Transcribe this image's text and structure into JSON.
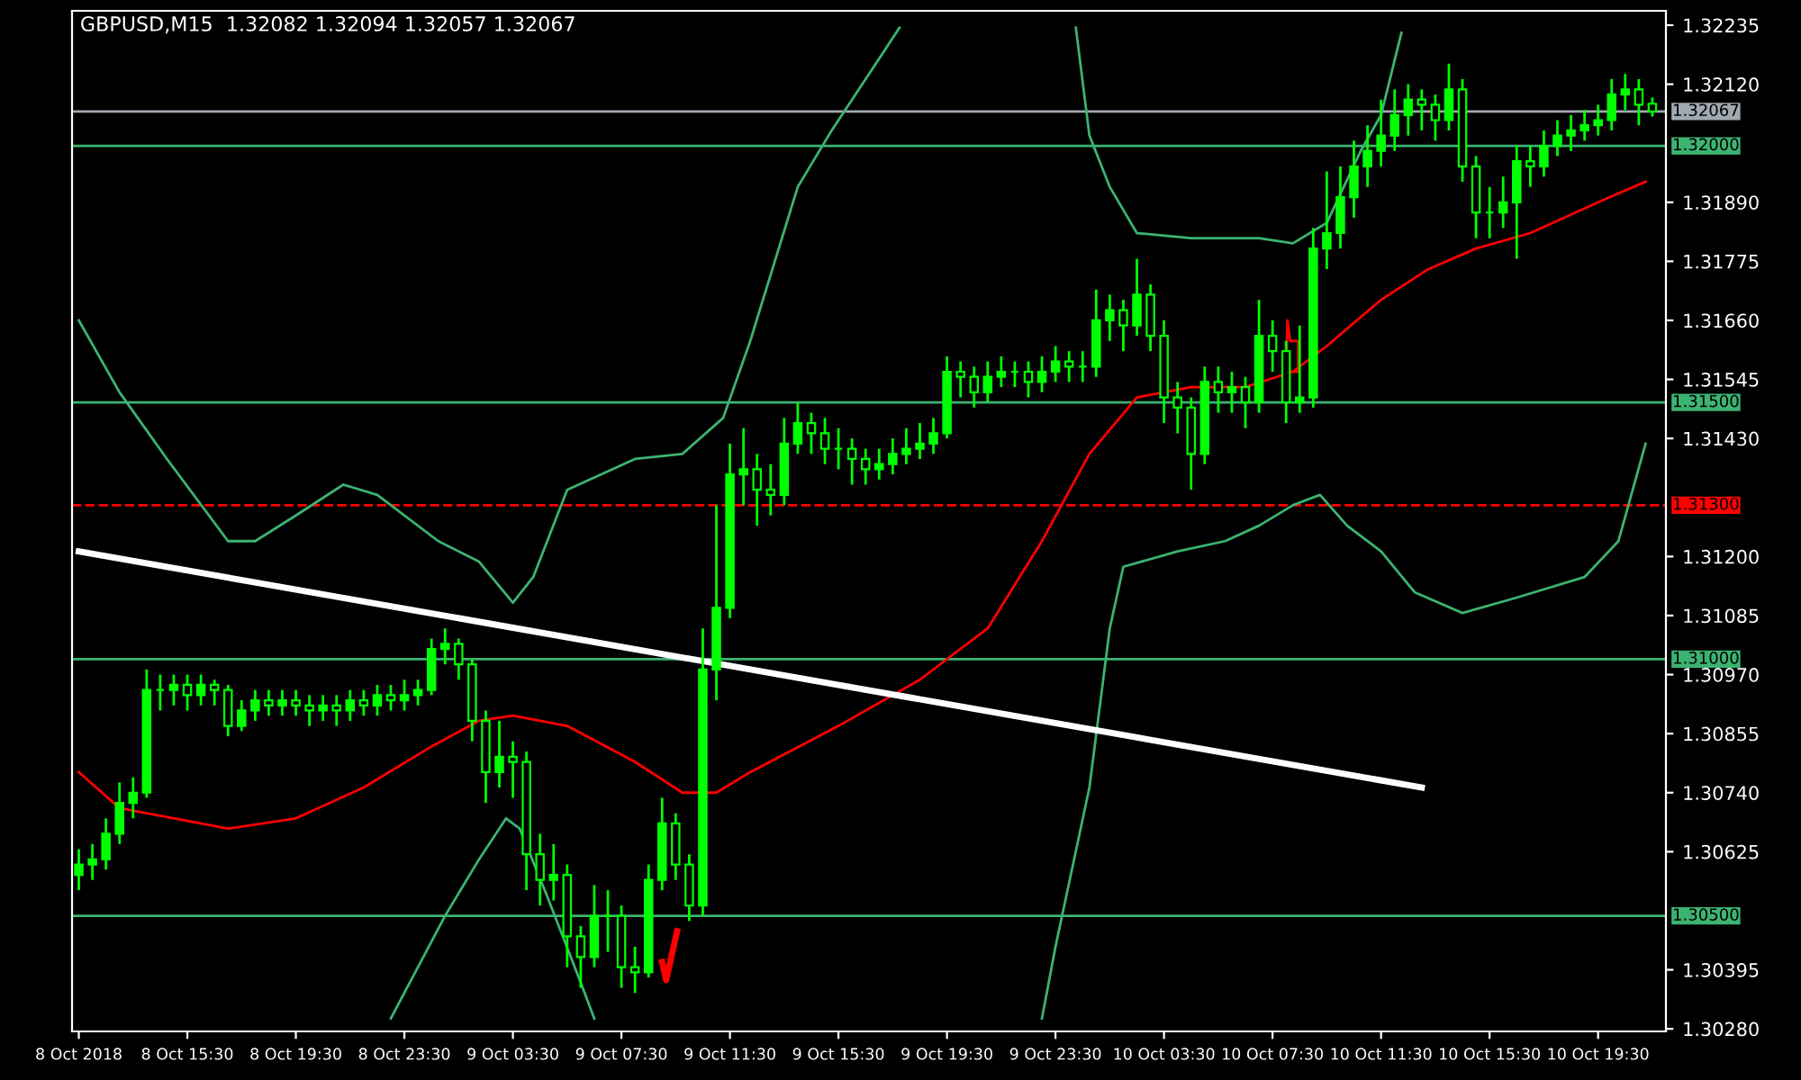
{
  "chart_data": {
    "type": "candlestick",
    "title": "GBPUSD,M15  1.32082 1.32094 1.32057 1.32067",
    "color": "#00ff00",
    "x": [
      "2018-10-08T11:30",
      "2018-10-08T12:00",
      "2018-10-08T12:30",
      "2018-10-08T13:00",
      "2018-10-08T13:30",
      "2018-10-08T14:00",
      "2018-10-08T14:30",
      "2018-10-08T15:00",
      "2018-10-08T15:30",
      "2018-10-08T16:00",
      "2018-10-08T16:30",
      "2018-10-08T17:00",
      "2018-10-08T17:30",
      "2018-10-08T18:00",
      "2018-10-08T18:30",
      "2018-10-08T19:00",
      "2018-10-08T19:30",
      "2018-10-08T20:00",
      "2018-10-08T20:30",
      "2018-10-08T21:00",
      "2018-10-08T21:30",
      "2018-10-08T22:00",
      "2018-10-08T22:30",
      "2018-10-08T23:00",
      "2018-10-08T23:30",
      "2018-10-09T00:00",
      "2018-10-09T00:30",
      "2018-10-09T01:00",
      "2018-10-09T01:30",
      "2018-10-09T02:00",
      "2018-10-09T02:30",
      "2018-10-09T03:00",
      "2018-10-09T03:30",
      "2018-10-09T04:00",
      "2018-10-09T04:30",
      "2018-10-09T05:00",
      "2018-10-09T05:30",
      "2018-10-09T06:00",
      "2018-10-09T06:30",
      "2018-10-09T07:00",
      "2018-10-09T07:30",
      "2018-10-09T08:00",
      "2018-10-09T08:30",
      "2018-10-09T09:00",
      "2018-10-09T09:30",
      "2018-10-09T10:00",
      "2018-10-09T10:30",
      "2018-10-09T11:00",
      "2018-10-09T11:30",
      "2018-10-09T12:00",
      "2018-10-09T12:30",
      "2018-10-09T13:00",
      "2018-10-09T13:30",
      "2018-10-09T14:00",
      "2018-10-09T14:30",
      "2018-10-09T15:00",
      "2018-10-09T15:30",
      "2018-10-09T16:00",
      "2018-10-09T16:30",
      "2018-10-09T17:00",
      "2018-10-09T17:30",
      "2018-10-09T18:00",
      "2018-10-09T18:30",
      "2018-10-09T19:00",
      "2018-10-09T19:30",
      "2018-10-09T20:00",
      "2018-10-09T20:30",
      "2018-10-09T21:00",
      "2018-10-09T21:30",
      "2018-10-09T22:00",
      "2018-10-09T22:30",
      "2018-10-09T23:00",
      "2018-10-09T23:30",
      "2018-10-10T00:00",
      "2018-10-10T00:30",
      "2018-10-10T01:00",
      "2018-10-10T01:30",
      "2018-10-10T02:00",
      "2018-10-10T02:30",
      "2018-10-10T03:00",
      "2018-10-10T03:30",
      "2018-10-10T04:00",
      "2018-10-10T04:30",
      "2018-10-10T05:00",
      "2018-10-10T05:30",
      "2018-10-10T06:00",
      "2018-10-10T06:30",
      "2018-10-10T07:00",
      "2018-10-10T07:30",
      "2018-10-10T08:00",
      "2018-10-10T08:30",
      "2018-10-10T09:00",
      "2018-10-10T09:30",
      "2018-10-10T10:00",
      "2018-10-10T10:30",
      "2018-10-10T11:00",
      "2018-10-10T11:30",
      "2018-10-10T12:00",
      "2018-10-10T12:30",
      "2018-10-10T13:00",
      "2018-10-10T13:30",
      "2018-10-10T14:00",
      "2018-10-10T14:30",
      "2018-10-10T15:00",
      "2018-10-10T15:30",
      "2018-10-10T16:00",
      "2018-10-10T16:30",
      "2018-10-10T17:00",
      "2018-10-10T17:30",
      "2018-10-10T18:00",
      "2018-10-10T18:30",
      "2018-10-10T19:00",
      "2018-10-10T19:30",
      "2018-10-10T20:00",
      "2018-10-10T20:30",
      "2018-10-10T21:00",
      "2018-10-10T21:30"
    ],
    "ohlc": [
      [
        1.3058,
        1.3063,
        1.3055,
        1.306
      ],
      [
        1.306,
        1.3064,
        1.3057,
        1.3061
      ],
      [
        1.3061,
        1.3069,
        1.3059,
        1.3066
      ],
      [
        1.3066,
        1.3076,
        1.3064,
        1.3072
      ],
      [
        1.3072,
        1.3077,
        1.3069,
        1.3074
      ],
      [
        1.3074,
        1.3098,
        1.3073,
        1.3094
      ],
      [
        1.3094,
        1.3097,
        1.309,
        1.3094
      ],
      [
        1.3094,
        1.3097,
        1.3091,
        1.3095
      ],
      [
        1.3095,
        1.3097,
        1.309,
        1.3093
      ],
      [
        1.3093,
        1.3097,
        1.3091,
        1.3095
      ],
      [
        1.3095,
        1.3096,
        1.3091,
        1.3094
      ],
      [
        1.3094,
        1.3095,
        1.3085,
        1.3087
      ],
      [
        1.3087,
        1.3092,
        1.3086,
        1.309
      ],
      [
        1.309,
        1.3094,
        1.3088,
        1.3092
      ],
      [
        1.3092,
        1.3094,
        1.3089,
        1.3091
      ],
      [
        1.3091,
        1.3094,
        1.3089,
        1.3092
      ],
      [
        1.3092,
        1.3094,
        1.3089,
        1.3091
      ],
      [
        1.3091,
        1.3093,
        1.3087,
        1.309
      ],
      [
        1.309,
        1.3093,
        1.3088,
        1.3091
      ],
      [
        1.3091,
        1.3093,
        1.3087,
        1.309
      ],
      [
        1.309,
        1.3094,
        1.3088,
        1.3092
      ],
      [
        1.3092,
        1.3094,
        1.3089,
        1.3091
      ],
      [
        1.3091,
        1.3095,
        1.3089,
        1.3093
      ],
      [
        1.3093,
        1.3095,
        1.309,
        1.3092
      ],
      [
        1.3092,
        1.3096,
        1.309,
        1.3093
      ],
      [
        1.3093,
        1.3096,
        1.3091,
        1.3094
      ],
      [
        1.3094,
        1.3104,
        1.3093,
        1.3102
      ],
      [
        1.3102,
        1.3106,
        1.3099,
        1.3103
      ],
      [
        1.3103,
        1.3104,
        1.3096,
        1.3099
      ],
      [
        1.3099,
        1.31,
        1.3084,
        1.3088
      ],
      [
        1.3088,
        1.309,
        1.3072,
        1.3078
      ],
      [
        1.3078,
        1.3088,
        1.3075,
        1.3081
      ],
      [
        1.3081,
        1.3084,
        1.3073,
        1.308
      ],
      [
        1.308,
        1.3082,
        1.3055,
        1.3062
      ],
      [
        1.3062,
        1.3066,
        1.3052,
        1.3057
      ],
      [
        1.3057,
        1.3064,
        1.3053,
        1.3058
      ],
      [
        1.3058,
        1.306,
        1.304,
        1.3046
      ],
      [
        1.3046,
        1.3048,
        1.3036,
        1.3042
      ],
      [
        1.3042,
        1.3056,
        1.304,
        1.305
      ],
      [
        1.305,
        1.3055,
        1.3043,
        1.305
      ],
      [
        1.305,
        1.3052,
        1.3036,
        1.304
      ],
      [
        1.304,
        1.3044,
        1.3035,
        1.3039
      ],
      [
        1.3039,
        1.306,
        1.3038,
        1.3057
      ],
      [
        1.3057,
        1.3073,
        1.3055,
        1.3068
      ],
      [
        1.3068,
        1.307,
        1.3057,
        1.306
      ],
      [
        1.306,
        1.3062,
        1.3049,
        1.3052
      ],
      [
        1.3052,
        1.3106,
        1.305,
        1.3098
      ],
      [
        1.3098,
        1.313,
        1.3092,
        1.311
      ],
      [
        1.311,
        1.3142,
        1.3108,
        1.3136
      ],
      [
        1.3136,
        1.3145,
        1.313,
        1.3137
      ],
      [
        1.3137,
        1.314,
        1.3126,
        1.3133
      ],
      [
        1.3133,
        1.3138,
        1.3128,
        1.3132
      ],
      [
        1.3132,
        1.3147,
        1.313,
        1.3142
      ],
      [
        1.3142,
        1.315,
        1.314,
        1.3146
      ],
      [
        1.3146,
        1.3148,
        1.314,
        1.3144
      ],
      [
        1.3144,
        1.3147,
        1.3138,
        1.3141
      ],
      [
        1.3141,
        1.3145,
        1.3137,
        1.3141
      ],
      [
        1.3141,
        1.3143,
        1.3134,
        1.3139
      ],
      [
        1.3139,
        1.3141,
        1.3134,
        1.3137
      ],
      [
        1.3137,
        1.3141,
        1.3135,
        1.3138
      ],
      [
        1.3138,
        1.3143,
        1.3136,
        1.314
      ],
      [
        1.314,
        1.3145,
        1.3138,
        1.3141
      ],
      [
        1.3141,
        1.3146,
        1.3139,
        1.3142
      ],
      [
        1.3142,
        1.3147,
        1.314,
        1.3144
      ],
      [
        1.3144,
        1.3159,
        1.3143,
        1.3156
      ],
      [
        1.3156,
        1.3158,
        1.3151,
        1.3155
      ],
      [
        1.3155,
        1.3157,
        1.3149,
        1.3152
      ],
      [
        1.3152,
        1.3158,
        1.315,
        1.3155
      ],
      [
        1.3155,
        1.3159,
        1.3153,
        1.3156
      ],
      [
        1.3156,
        1.3158,
        1.3153,
        1.3156
      ],
      [
        1.3156,
        1.3158,
        1.3151,
        1.3154
      ],
      [
        1.3154,
        1.3159,
        1.3152,
        1.3156
      ],
      [
        1.3156,
        1.3161,
        1.3154,
        1.3158
      ],
      [
        1.3158,
        1.316,
        1.3154,
        1.3157
      ],
      [
        1.3157,
        1.316,
        1.3154,
        1.3157
      ],
      [
        1.3157,
        1.3172,
        1.3155,
        1.3166
      ],
      [
        1.3166,
        1.3171,
        1.3162,
        1.3168
      ],
      [
        1.3168,
        1.317,
        1.316,
        1.3165
      ],
      [
        1.3165,
        1.3178,
        1.3163,
        1.3171
      ],
      [
        1.3171,
        1.3173,
        1.316,
        1.3163
      ],
      [
        1.3163,
        1.3166,
        1.3146,
        1.3151
      ],
      [
        1.3151,
        1.3154,
        1.3144,
        1.3149
      ],
      [
        1.3149,
        1.3151,
        1.3133,
        1.314
      ],
      [
        1.314,
        1.3157,
        1.3138,
        1.3154
      ],
      [
        1.3154,
        1.3157,
        1.3148,
        1.3152
      ],
      [
        1.3152,
        1.3156,
        1.3148,
        1.3153
      ],
      [
        1.3153,
        1.3155,
        1.3145,
        1.315
      ],
      [
        1.315,
        1.317,
        1.3148,
        1.3163
      ],
      [
        1.3163,
        1.3166,
        1.3156,
        1.316
      ],
      [
        1.316,
        1.3162,
        1.3146,
        1.315
      ],
      [
        1.315,
        1.3165,
        1.3148,
        1.3151
      ],
      [
        1.3151,
        1.3184,
        1.3149,
        1.318
      ],
      [
        1.318,
        1.3195,
        1.3176,
        1.3183
      ],
      [
        1.3183,
        1.3196,
        1.318,
        1.319
      ],
      [
        1.319,
        1.3201,
        1.3186,
        1.3196
      ],
      [
        1.3196,
        1.3204,
        1.3192,
        1.3199
      ],
      [
        1.3199,
        1.3209,
        1.3196,
        1.3202
      ],
      [
        1.3202,
        1.3211,
        1.3199,
        1.3206
      ],
      [
        1.3206,
        1.3212,
        1.3202,
        1.3209
      ],
      [
        1.3209,
        1.3211,
        1.3203,
        1.3208
      ],
      [
        1.3208,
        1.321,
        1.3201,
        1.3205
      ],
      [
        1.3205,
        1.3216,
        1.3203,
        1.3211
      ],
      [
        1.3211,
        1.3213,
        1.3193,
        1.3196
      ],
      [
        1.3196,
        1.3198,
        1.3182,
        1.3187
      ],
      [
        1.3187,
        1.3192,
        1.3182,
        1.3187
      ],
      [
        1.3187,
        1.3194,
        1.3184,
        1.3189
      ],
      [
        1.3189,
        1.32,
        1.3178,
        1.3197
      ],
      [
        1.3197,
        1.32,
        1.3192,
        1.3196
      ],
      [
        1.3196,
        1.3203,
        1.3194,
        1.32
      ],
      [
        1.32,
        1.3205,
        1.3198,
        1.3202
      ],
      [
        1.3202,
        1.3206,
        1.3199,
        1.3203
      ],
      [
        1.3203,
        1.3207,
        1.3201,
        1.3204
      ],
      [
        1.3204,
        1.3208,
        1.3202,
        1.3205
      ],
      [
        1.3205,
        1.3213,
        1.3203,
        1.321
      ],
      [
        1.321,
        1.3214,
        1.3207,
        1.3211
      ],
      [
        1.3211,
        1.3213,
        1.3204,
        1.3208
      ],
      [
        1.32082,
        1.32094,
        1.32057,
        1.32067
      ]
    ],
    "series": [
      {
        "type": "line",
        "color": "#ff0000",
        "x": [
          "2018-10-08T11:30",
          "2018-10-08T13:00",
          "2018-10-08T17:00",
          "2018-10-08T19:30",
          "2018-10-08T22:00",
          "2018-10-09T00:30",
          "2018-10-09T02:15",
          "2018-10-09T03:30",
          "2018-10-09T05:30",
          "2018-10-09T08:00",
          "2018-10-09T09:45",
          "2018-10-09T11:00",
          "2018-10-09T12:15",
          "2018-10-09T15:30",
          "2018-10-09T18:30",
          "2018-10-09T21:00",
          "2018-10-09T23:00",
          "2018-10-10T00:45",
          "2018-10-10T02:30",
          "2018-10-10T04:30",
          "2018-10-10T06:30",
          "2018-10-10T08:15",
          "2018-10-10T09:30",
          "2018-10-10T11:30",
          "2018-10-10T13:15",
          "2018-10-10T15:00",
          "2018-10-10T17:00",
          "2018-10-10T19:30",
          "2018-10-10T21:15"
        ],
        "values": [
          1.3078,
          1.3071,
          1.3067,
          1.3069,
          1.3075,
          1.3083,
          1.3088,
          1.3089,
          1.3087,
          1.308,
          1.3074,
          1.3074,
          1.3078,
          1.3087,
          1.3096,
          1.3106,
          1.3123,
          1.314,
          1.3151,
          1.3153,
          1.3153,
          1.3156,
          1.3161,
          1.317,
          1.3176,
          1.318,
          1.3183,
          1.3189,
          1.3193
        ]
      },
      {
        "type": "line",
        "color": "#3cb371",
        "x": [
          "2018-10-08T11:30",
          "2018-10-08T13:00",
          "2018-10-08T14:45",
          "2018-10-08T17:00",
          "2018-10-08T18:00",
          "2018-10-08T19:30",
          "2018-10-08T21:15",
          "2018-10-08T22:30",
          "2018-10-09T00:45",
          "2018-10-09T02:15",
          "2018-10-09T03:30",
          "2018-10-09T04:15",
          "2018-10-09T05:30",
          "2018-10-09T08:00",
          "2018-10-09T09:45",
          "2018-10-09T11:15",
          "2018-10-09T12:15",
          "2018-10-09T14:00",
          "2018-10-09T15:15",
          "2018-10-09T17:15",
          "2018-10-09T17:45",
          "2018-10-09T21:00",
          "2018-10-10T00:15",
          "2018-10-10T00:45",
          "2018-10-10T01:30",
          "2018-10-10T02:30",
          "2018-10-10T04:30",
          "2018-10-10T07:00",
          "2018-10-10T08:15",
          "2018-10-10T09:30",
          "2018-10-10T10:45",
          "2018-10-10T11:30",
          "2018-10-10T12:15"
        ],
        "values": [
          1.3166,
          1.3152,
          1.3139,
          1.3123,
          1.3123,
          1.3128,
          1.3134,
          1.3132,
          1.3123,
          1.3119,
          1.3111,
          1.3116,
          1.3133,
          1.3139,
          1.314,
          1.3147,
          1.3162,
          1.3192,
          1.3203,
          1.3219,
          1.3223,
          null,
          1.3223,
          1.3202,
          1.3192,
          1.3183,
          1.3182,
          1.3182,
          1.3181,
          1.3185,
          1.3199,
          1.3206,
          1.3222
        ]
      },
      {
        "type": "line",
        "color": "#3cb371",
        "x": [
          "2018-10-08T23:00",
          "2018-10-09T01:00",
          "2018-10-09T02:15",
          "2018-10-09T03:15",
          "2018-10-09T03:45",
          "2018-10-09T04:45",
          "2018-10-09T06:00",
          "2018-10-09T06:30",
          "2018-10-09T15:00",
          "2018-10-09T23:00",
          "2018-10-09T23:30",
          "2018-10-10T00:45",
          "2018-10-10T01:30",
          "2018-10-10T02:00",
          "2018-10-10T04:00",
          "2018-10-10T05:45",
          "2018-10-10T07:00",
          "2018-10-10T08:15",
          "2018-10-10T09:15",
          "2018-10-10T10:15",
          "2018-10-10T11:30",
          "2018-10-10T12:45",
          "2018-10-10T14:30",
          "2018-10-10T16:30",
          "2018-10-10T19:00",
          "2018-10-10T20:15",
          "2018-10-10T21:15"
        ],
        "values": [
          1.303,
          1.305,
          1.3061,
          1.3069,
          1.3067,
          1.3054,
          1.3037,
          1.303,
          null,
          1.303,
          1.3044,
          1.3075,
          1.3106,
          1.3118,
          1.3121,
          1.3123,
          1.3126,
          1.313,
          1.3132,
          1.3126,
          1.3121,
          1.3113,
          1.3109,
          1.3112,
          1.3116,
          1.3123,
          1.3142
        ]
      },
      {
        "type": "line",
        "color": "#ffffff",
        "x": [
          "2018-10-08T11:30",
          "2018-10-10T13:00"
        ],
        "values": [
          1.3121,
          1.3075
        ]
      }
    ],
    "xlim": [
      "2018-10-08T11:15",
      "2018-10-10T22:00"
    ],
    "xticks": [
      {
        "value": "2018-10-08T11:30",
        "label": "8 Oct 2018"
      },
      {
        "value": "2018-10-08T15:30",
        "label": "8 Oct 15:30"
      },
      {
        "value": "2018-10-08T19:30",
        "label": "8 Oct 19:30"
      },
      {
        "value": "2018-10-08T23:30",
        "label": "8 Oct 23:30"
      },
      {
        "value": "2018-10-09T03:30",
        "label": "9 Oct 03:30"
      },
      {
        "value": "2018-10-09T07:30",
        "label": "9 Oct 07:30"
      },
      {
        "value": "2018-10-09T11:30",
        "label": "9 Oct 11:30"
      },
      {
        "value": "2018-10-09T15:30",
        "label": "9 Oct 15:30"
      },
      {
        "value": "2018-10-09T19:30",
        "label": "9 Oct 19:30"
      },
      {
        "value": "2018-10-09T23:30",
        "label": "9 Oct 23:30"
      },
      {
        "value": "2018-10-10T03:30",
        "label": "10 Oct 03:30"
      },
      {
        "value": "2018-10-10T07:30",
        "label": "10 Oct 07:30"
      },
      {
        "value": "2018-10-10T11:30",
        "label": "10 Oct 11:30"
      },
      {
        "value": "2018-10-10T15:30",
        "label": "10 Oct 15:30"
      },
      {
        "value": "2018-10-10T19:30",
        "label": "10 Oct 19:30"
      }
    ],
    "ylim": [
      1.30275,
      1.32263
    ],
    "yticks": [
      {
        "value": 1.3028,
        "label": "1.30280"
      },
      {
        "value": 1.30395,
        "label": "1.30395"
      },
      {
        "value": 1.30625,
        "label": "1.30625"
      },
      {
        "value": 1.3074,
        "label": "1.30740"
      },
      {
        "value": 1.30855,
        "label": "1.30855"
      },
      {
        "value": 1.3097,
        "label": "1.30970"
      },
      {
        "value": 1.31085,
        "label": "1.31085"
      },
      {
        "value": 1.312,
        "label": "1.31200"
      },
      {
        "value": 1.3143,
        "label": "1.31430"
      },
      {
        "value": 1.31545,
        "label": "1.31545"
      },
      {
        "value": 1.3166,
        "label": "1.31660"
      },
      {
        "value": 1.31775,
        "label": "1.31775"
      },
      {
        "value": 1.3189,
        "label": "1.31890"
      },
      {
        "value": 1.3212,
        "label": "1.32120"
      },
      {
        "value": 1.32235,
        "label": "1.32235"
      }
    ],
    "ref_lines": [
      {
        "axis": "y",
        "value": 1.32067,
        "label": "1.32067",
        "color": "#a0a8b0",
        "line_style": "solid"
      },
      {
        "axis": "y",
        "value": 1.32,
        "label": "1.32000",
        "color": "#3cb371",
        "line_style": "solid"
      },
      {
        "axis": "y",
        "value": 1.315,
        "label": "1.31500",
        "color": "#3cb371",
        "line_style": "solid"
      },
      {
        "axis": "y",
        "value": 1.313,
        "label": "1.31300",
        "color": "#ff0000",
        "line_style": "dashed"
      },
      {
        "axis": "y",
        "value": 1.31,
        "label": "1.31000",
        "color": "#3cb371",
        "line_style": "solid"
      },
      {
        "axis": "y",
        "value": 1.305,
        "label": "1.30500",
        "color": "#3cb371",
        "line_style": "solid"
      }
    ]
  }
}
